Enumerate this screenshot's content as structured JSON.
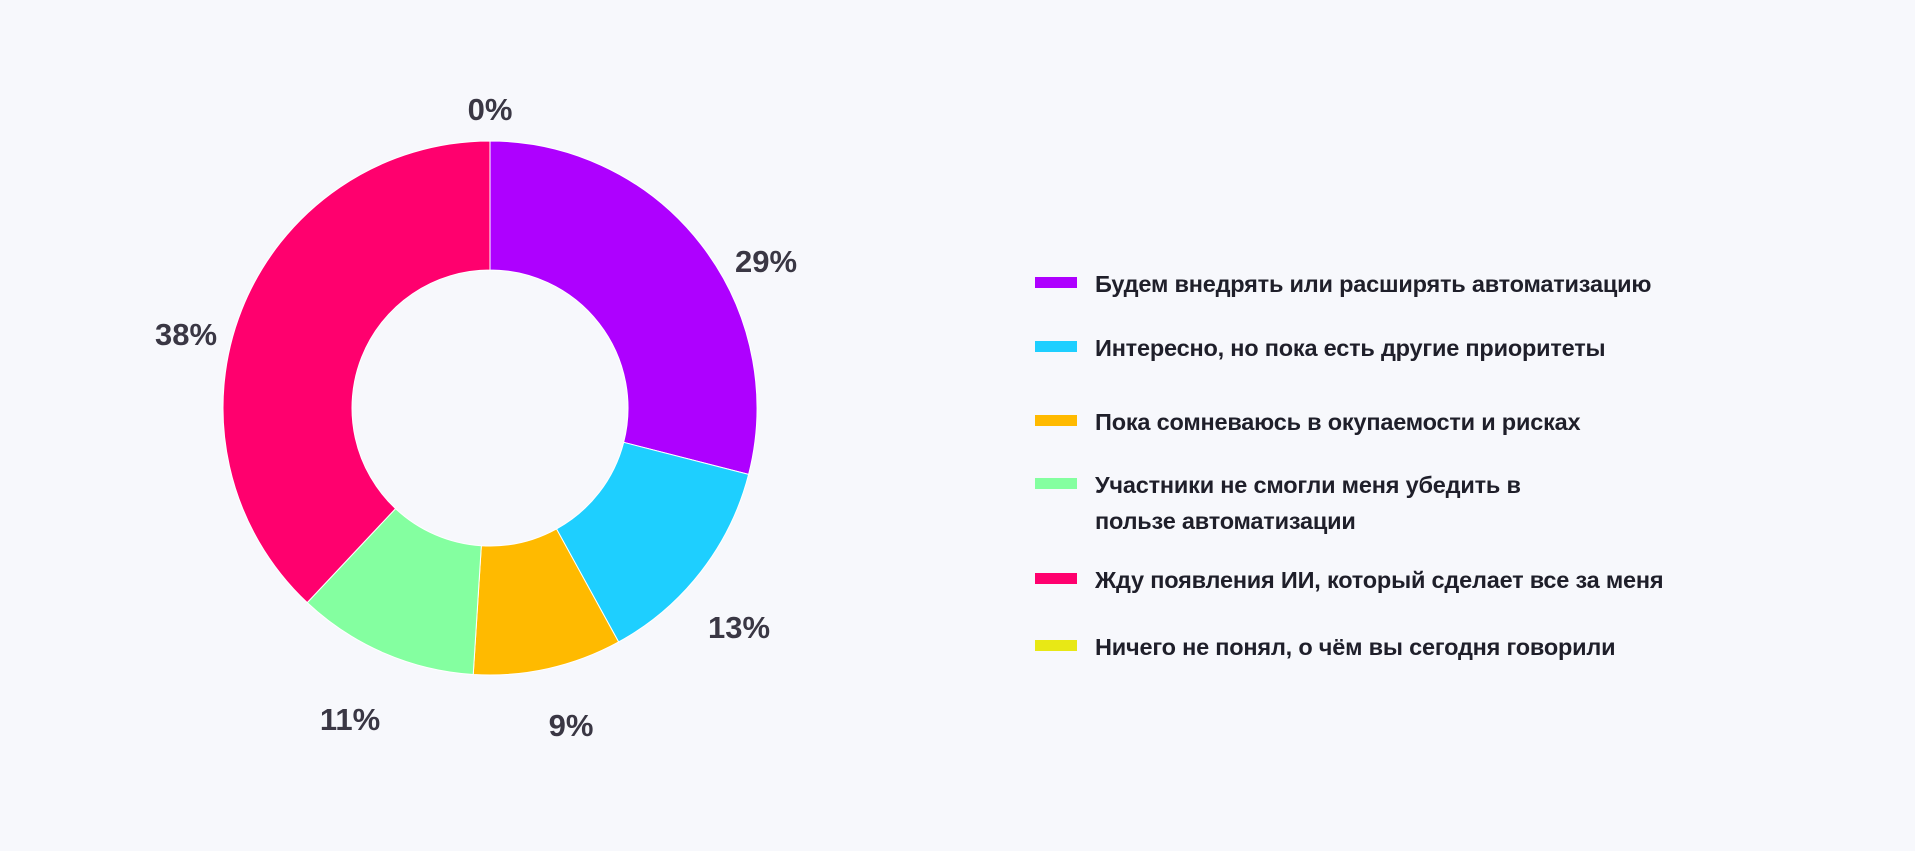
{
  "chart_data": {
    "type": "pie",
    "variant": "donut",
    "title": "",
    "start": "top",
    "direction": "clockwise",
    "categories": [
      "Будем внедрять или расширять автоматизацию",
      "Интересно, но пока есть другие приоритеты",
      "Пока сомневаюсь в окупаемости и рисках",
      "Участники не смогли меня убедить в пользе автоматизации",
      "Жду появления ИИ, который сделает все за меня",
      "Ничего не понял, о чём вы сегодня говорили"
    ],
    "values": [
      29,
      13,
      9,
      11,
      38,
      0
    ],
    "labels": [
      "29%",
      "13%",
      "9%",
      "11%",
      "38%",
      "0%"
    ],
    "colors": [
      "#AE00FF",
      "#1ECFFF",
      "#FFBA00",
      "#84FFA0",
      "#FF006E",
      "#E8E815"
    ],
    "legend_position": "right"
  },
  "legend": {
    "items": [
      {
        "line1": "Будем внедрять или расширять автоматизацию",
        "line2": ""
      },
      {
        "line1": "Интересно, но пока есть другие приоритеты",
        "line2": ""
      },
      {
        "line1": "Пока сомневаюсь в окупаемости и рисках",
        "line2": ""
      },
      {
        "line1": "Участники не смогли меня убедить в",
        "line2": "пользе автоматизации"
      },
      {
        "line1": "Жду появления ИИ, который сделает все за меня",
        "line2": ""
      },
      {
        "line1": "Ничего не понял, о чём вы сегодня говорили",
        "line2": ""
      }
    ]
  }
}
